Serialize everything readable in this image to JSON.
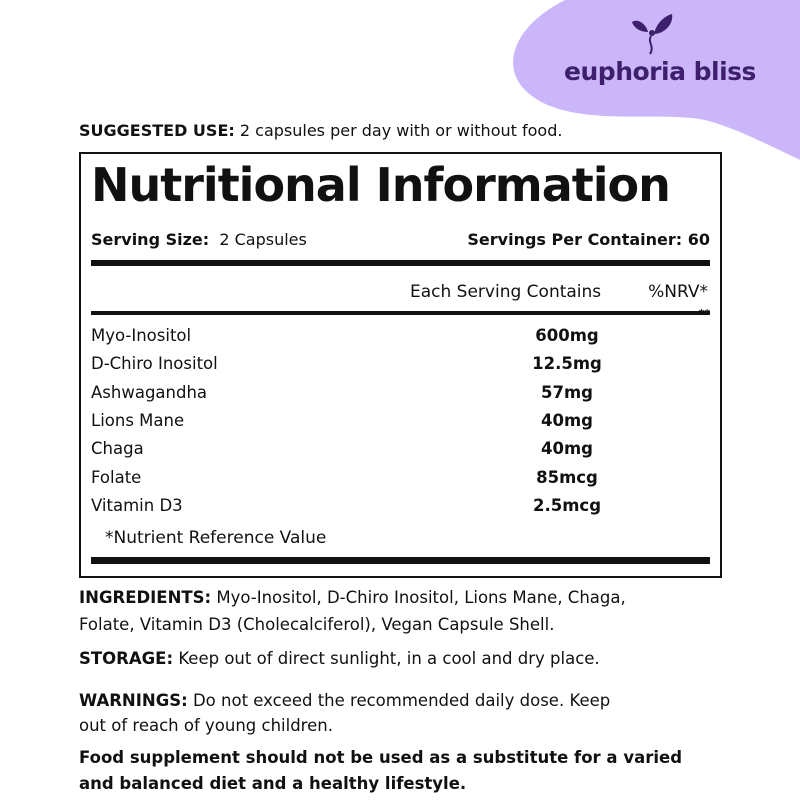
{
  "brand": {
    "name": "euphoria bliss",
    "color": "#3d1f6e",
    "blob_color": "#cbb6f9",
    "icon": "leaf-person-logo-icon"
  },
  "suggested_use": {
    "label": "SUGGESTED USE:",
    "text": "2 capsules per day with or without food."
  },
  "panel": {
    "title": "Nutritional Information",
    "serving_size_label": "Serving Size:",
    "serving_size": "2 Capsules",
    "servings_label": "Servings Per Container:",
    "servings": "60",
    "col_each": "Each Serving Contains",
    "col_nrv": "%NRV*",
    "col_nrv2": "**",
    "rows": [
      {
        "name": "Myo-Inositol",
        "value": "600mg"
      },
      {
        "name": "D-Chiro Inositol",
        "value": "12.5mg"
      },
      {
        "name": "Ashwagandha",
        "value": "57mg"
      },
      {
        "name": "Lions Mane",
        "value": "40mg"
      },
      {
        "name": "Chaga",
        "value": "40mg"
      },
      {
        "name": "Folate",
        "value": "85mcg"
      },
      {
        "name": "Vitamin D3",
        "value": "2.5mcg"
      }
    ],
    "footnote": "*Nutrient Reference Value"
  },
  "ingredients": {
    "label": "INGREDIENTS:",
    "line1": "Myo-Inositol, D-Chiro Inositol, Lions Mane, Chaga,",
    "line2": "Folate, Vitamin D3 (Cholecalciferol), Vegan Capsule Shell."
  },
  "storage": {
    "label": "STORAGE:",
    "text": "Keep out of direct sunlight, in a cool and dry place."
  },
  "warnings": {
    "label": "WARNINGS:",
    "line1": "Do not exceed the recommended daily dose. Keep",
    "line2": "out of reach of young children."
  },
  "disclaimer": {
    "line1": "Food supplement should not be used as a substitute for a varied",
    "line2": "and balanced diet and a healthy lifestyle."
  }
}
